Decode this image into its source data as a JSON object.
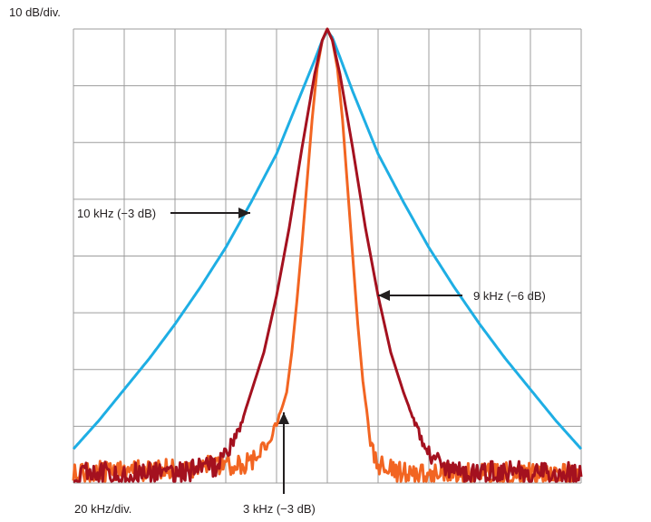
{
  "chart_data": {
    "type": "line",
    "y_scale_label": "10 dB/div.",
    "x_scale_label": "20 kHz/div.",
    "x_range_khz": [
      -100,
      100
    ],
    "y_range_db": [
      -80,
      0
    ],
    "grid": true,
    "colors": {
      "grid": "#9d9d9d",
      "blue": "#1eaee4",
      "dark_red": "#a4111f",
      "orange": "#f26522",
      "text": "#231f20"
    },
    "series": [
      {
        "name": "10 kHz (−3 dB)",
        "color_key": "blue",
        "x": [
          -100,
          -90,
          -80,
          -70,
          -60,
          -50,
          -40,
          -30,
          -20,
          -10,
          -5,
          -2,
          0,
          2,
          5,
          10,
          20,
          30,
          40,
          50,
          60,
          70,
          80,
          90,
          100
        ],
        "y": [
          -74,
          -69,
          -63.5,
          -58,
          -52,
          -45.5,
          -38.5,
          -30.5,
          -22,
          -11,
          -5.5,
          -2,
          -0.3,
          -1.5,
          -5,
          -11,
          -22,
          -30.5,
          -38.5,
          -45.5,
          -52,
          -58,
          -63.5,
          -69,
          -74
        ]
      },
      {
        "name": "9 kHz (−6 dB)",
        "color_key": "dark_red",
        "noise_floor_db": -78.5,
        "x": [
          -100,
          -55,
          -44,
          -40,
          -35,
          -30,
          -25,
          -20,
          -15,
          -10,
          -5,
          -2,
          0,
          2,
          5,
          10,
          15,
          20,
          25,
          30,
          35,
          40,
          50,
          100
        ],
        "y": [
          -78.5,
          -78,
          -77,
          -75,
          -71,
          -64,
          -57,
          -47,
          -35,
          -21,
          -8,
          -2,
          0,
          -2,
          -8,
          -21,
          -35,
          -47,
          -57,
          -64,
          -70,
          -75,
          -78,
          -78.5
        ]
      },
      {
        "name": "3 kHz (−3 dB)",
        "color_key": "orange",
        "noise_floor_db": -78.5,
        "x": [
          -100,
          -30,
          -22,
          -18,
          -16,
          -14,
          -12,
          -10,
          -8,
          -6,
          -4,
          -2,
          0,
          2,
          4,
          6,
          8,
          10,
          12,
          14,
          16,
          17,
          19,
          22,
          30,
          100
        ],
        "y": [
          -78.5,
          -76.5,
          -72,
          -67,
          -64,
          -57,
          -48,
          -38,
          -27,
          -16,
          -7,
          -2,
          0,
          -2,
          -7,
          -16,
          -28,
          -40,
          -52,
          -62,
          -69,
          -73,
          -76,
          -77.5,
          -78.5,
          -78.5
        ]
      }
    ],
    "annotations": [
      {
        "text": "10 kHz (−3 dB)",
        "target_series": "blue",
        "arrow": "right"
      },
      {
        "text": "9 kHz (−6 dB)",
        "target_series": "dark_red",
        "arrow": "left"
      },
      {
        "text": "3 kHz (−3 dB)",
        "target_series": "orange",
        "arrow": "up"
      }
    ]
  }
}
